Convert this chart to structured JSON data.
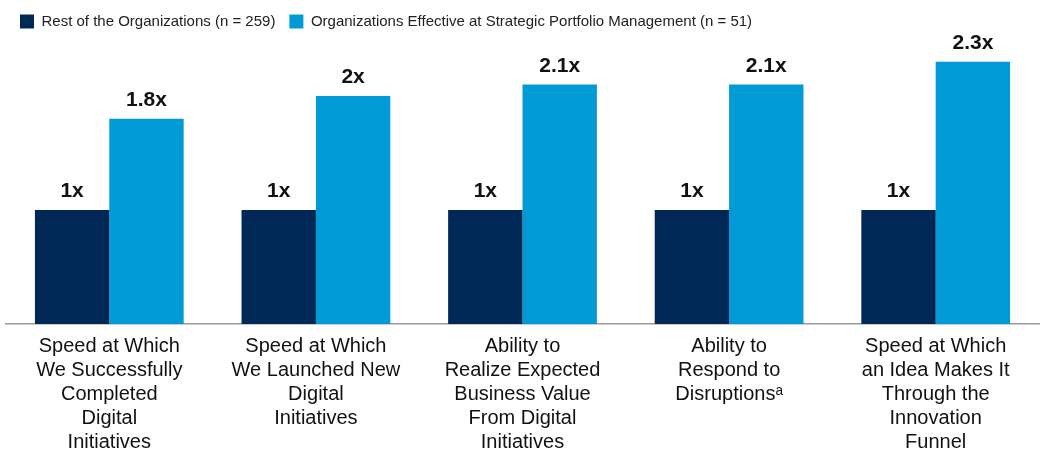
{
  "chart_data": {
    "type": "bar",
    "categories": [
      "Speed at Which We Successfully Completed Digital Initiatives",
      "Speed at Which We Launched New Digital Initiatives",
      "Ability to Realize Expected Business Value From Digital Initiatives",
      "Ability to Respond to Disruptionsᵃ",
      "Speed at Which an Idea Makes It Through the Innovation Funnel"
    ],
    "series": [
      {
        "name": "Rest of the Organizations (n = 259)",
        "color": "#002856",
        "values": [
          1,
          1,
          1,
          1,
          1
        ],
        "value_labels": [
          "1x",
          "1x",
          "1x",
          "1x",
          "1x"
        ]
      },
      {
        "name": "Organizations Effective at Strategic Portfolio Management (n = 51)",
        "color": "#009ad7",
        "values": [
          1.8,
          2,
          2.1,
          2.1,
          2.3
        ],
        "value_labels": [
          "1.8x",
          "2x",
          "2.1x",
          "2.1x",
          "2.3x"
        ]
      }
    ],
    "legend": "top left"
  }
}
